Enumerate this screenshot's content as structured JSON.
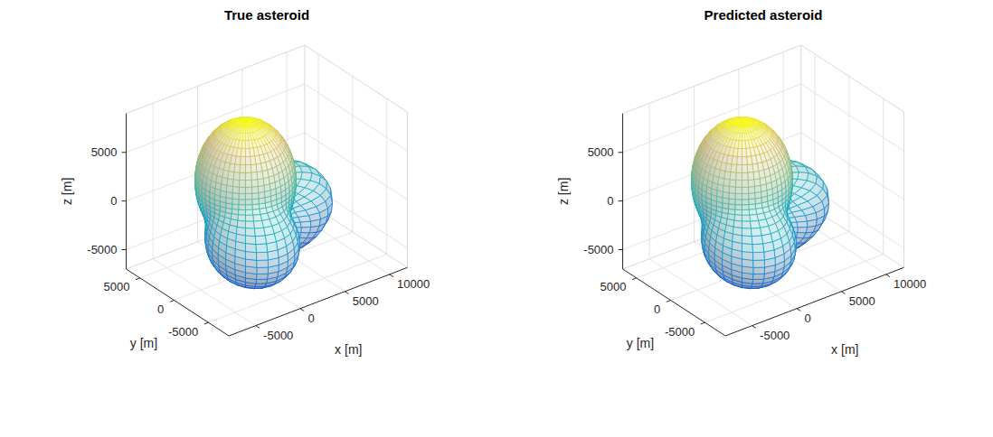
{
  "chart_data": [
    {
      "type": "surface",
      "title": "True asteroid",
      "x_label": "x [m]",
      "y_label": "y [m]",
      "z_label": "z [m]",
      "xlim": [
        -8000,
        12000
      ],
      "xticks": [
        -5000,
        0,
        5000,
        10000
      ],
      "ylim": [
        -8000,
        7000
      ],
      "yticks": [
        -5000,
        0,
        5000
      ],
      "zlim": [
        -7000,
        9000
      ],
      "zticks": [
        -5000,
        0,
        5000
      ],
      "grid": true,
      "lobes": [
        {
          "center": [
            0,
            0,
            2500
          ],
          "radii": [
            4500,
            4500,
            6000
          ]
        },
        {
          "center": [
            -1500,
            -3000,
            -2000
          ],
          "radii": [
            4000,
            4500,
            4000
          ]
        },
        {
          "center": [
            4000,
            1500,
            -2500
          ],
          "radii": [
            6000,
            4500,
            4200
          ]
        }
      ]
    },
    {
      "type": "surface",
      "title": "Predicted asteroid",
      "x_label": "x [m]",
      "y_label": "y [m]",
      "z_label": "z [m]",
      "xlim": [
        -8000,
        12000
      ],
      "xticks": [
        -5000,
        0,
        5000,
        10000
      ],
      "ylim": [
        -8000,
        7000
      ],
      "yticks": [
        -5000,
        0,
        5000
      ],
      "zlim": [
        -7000,
        9000
      ],
      "zticks": [
        -5000,
        0,
        5000
      ],
      "grid": true,
      "lobes": [
        {
          "center": [
            0,
            0,
            2500
          ],
          "radii": [
            4500,
            4500,
            6000
          ]
        },
        {
          "center": [
            -1500,
            -3000,
            -2000
          ],
          "radii": [
            4000,
            4500,
            4000
          ]
        },
        {
          "center": [
            4000,
            1500,
            -2500
          ],
          "radii": [
            6000,
            4500,
            4200
          ]
        }
      ]
    }
  ]
}
